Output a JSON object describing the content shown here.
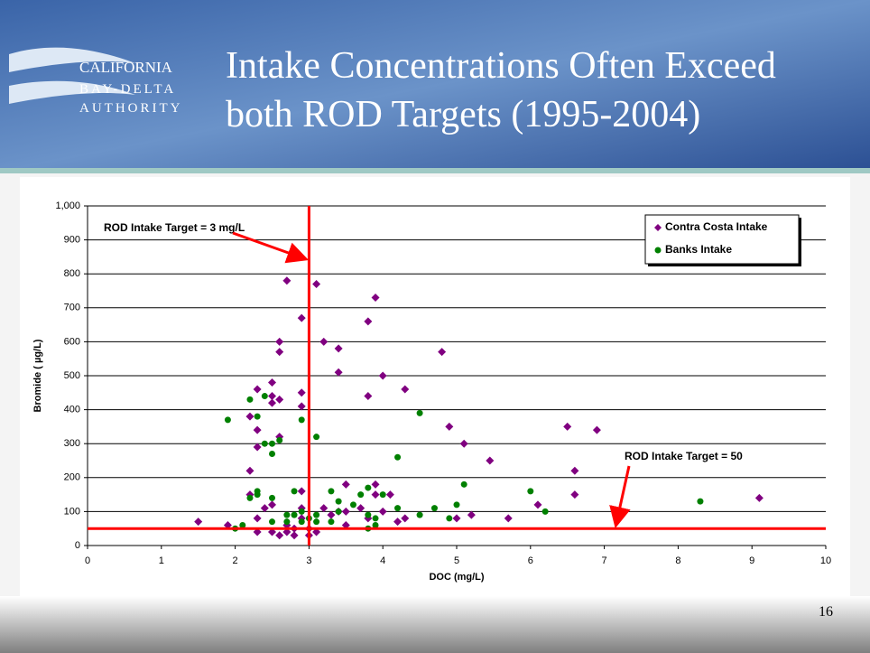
{
  "slide": {
    "title": [
      "Intake Concentrations Often Exceed",
      "both ROD Targets (1995-2004)"
    ],
    "logo": [
      "CALIFORNIA",
      "BAY-DELTA",
      "AUTHORITY"
    ],
    "page_number": "16"
  },
  "chart_data": {
    "type": "scatter",
    "xlabel": "DOC (mg/L)",
    "ylabel": "Bromide ( µg/L)",
    "xlim": [
      0,
      10
    ],
    "xticks": [
      0,
      1,
      2,
      3,
      4,
      5,
      6,
      7,
      8,
      9,
      10
    ],
    "ylim": [
      0,
      1000
    ],
    "yticks": [
      0,
      100,
      200,
      300,
      400,
      500,
      600,
      700,
      800,
      900,
      {
        "value": 1000,
        "label": "1,000"
      }
    ],
    "grid": true,
    "legend": "upper right",
    "vline": {
      "value": 3,
      "color": "#ff0000",
      "label": "ROD Intake Target = 3 mg/L"
    },
    "hline": {
      "value": 50,
      "color": "#ff0000",
      "label": "ROD Intake Target = 50"
    },
    "series": [
      {
        "name": "Contra Costa Intake",
        "color": "#800080",
        "marker": "diamond",
        "x": [
          1.5,
          1.9,
          2.2,
          2.2,
          2.2,
          2.3,
          2.3,
          2.3,
          2.3,
          2.3,
          2.4,
          2.5,
          2.5,
          2.5,
          2.5,
          2.5,
          2.6,
          2.6,
          2.6,
          2.6,
          2.6,
          2.7,
          2.7,
          2.7,
          2.8,
          2.8,
          2.9,
          2.9,
          2.9,
          2.9,
          2.9,
          2.9,
          3.0,
          3.0,
          3.1,
          3.1,
          3.2,
          3.2,
          3.3,
          3.4,
          3.4,
          3.4,
          3.5,
          3.5,
          3.5,
          3.7,
          3.8,
          3.8,
          3.8,
          3.9,
          3.9,
          3.9,
          4.0,
          4.0,
          4.1,
          4.2,
          4.3,
          4.3,
          4.8,
          4.9,
          5.0,
          5.1,
          5.2,
          5.45,
          5.7,
          6.1,
          6.5,
          6.6,
          6.6,
          6.9,
          9.1
        ],
        "values": [
          70,
          60,
          220,
          150,
          380,
          460,
          340,
          290,
          80,
          40,
          110,
          480,
          440,
          420,
          120,
          40,
          600,
          570,
          430,
          320,
          30,
          780,
          60,
          40,
          50,
          30,
          670,
          450,
          410,
          160,
          110,
          80,
          50,
          30,
          770,
          40,
          600,
          110,
          90,
          580,
          510,
          100,
          180,
          100,
          60,
          110,
          660,
          440,
          80,
          730,
          180,
          150,
          500,
          100,
          150,
          70,
          460,
          80,
          570,
          350,
          80,
          300,
          90,
          250,
          80,
          120,
          350,
          220,
          150,
          340,
          140
        ]
      },
      {
        "name": "Banks Intake",
        "color": "#008000",
        "marker": "circle",
        "x": [
          1.9,
          2.0,
          2.1,
          2.2,
          2.2,
          2.3,
          2.3,
          2.3,
          2.4,
          2.4,
          2.5,
          2.5,
          2.5,
          2.5,
          2.6,
          2.7,
          2.7,
          2.8,
          2.8,
          2.9,
          2.9,
          2.9,
          3.0,
          3.1,
          3.1,
          3.1,
          3.3,
          3.3,
          3.4,
          3.4,
          3.6,
          3.7,
          3.8,
          3.8,
          3.8,
          3.9,
          3.9,
          4.0,
          4.2,
          4.2,
          4.5,
          4.5,
          4.7,
          4.9,
          5.0,
          5.1,
          6.0,
          6.2,
          8.3
        ],
        "values": [
          370,
          50,
          60,
          430,
          140,
          380,
          160,
          150,
          440,
          300,
          300,
          270,
          140,
          70,
          310,
          90,
          70,
          160,
          90,
          370,
          100,
          70,
          80,
          320,
          90,
          70,
          160,
          70,
          130,
          100,
          120,
          150,
          170,
          90,
          50,
          80,
          60,
          150,
          260,
          110,
          390,
          90,
          110,
          80,
          120,
          180,
          160,
          100,
          130
        ]
      }
    ]
  }
}
